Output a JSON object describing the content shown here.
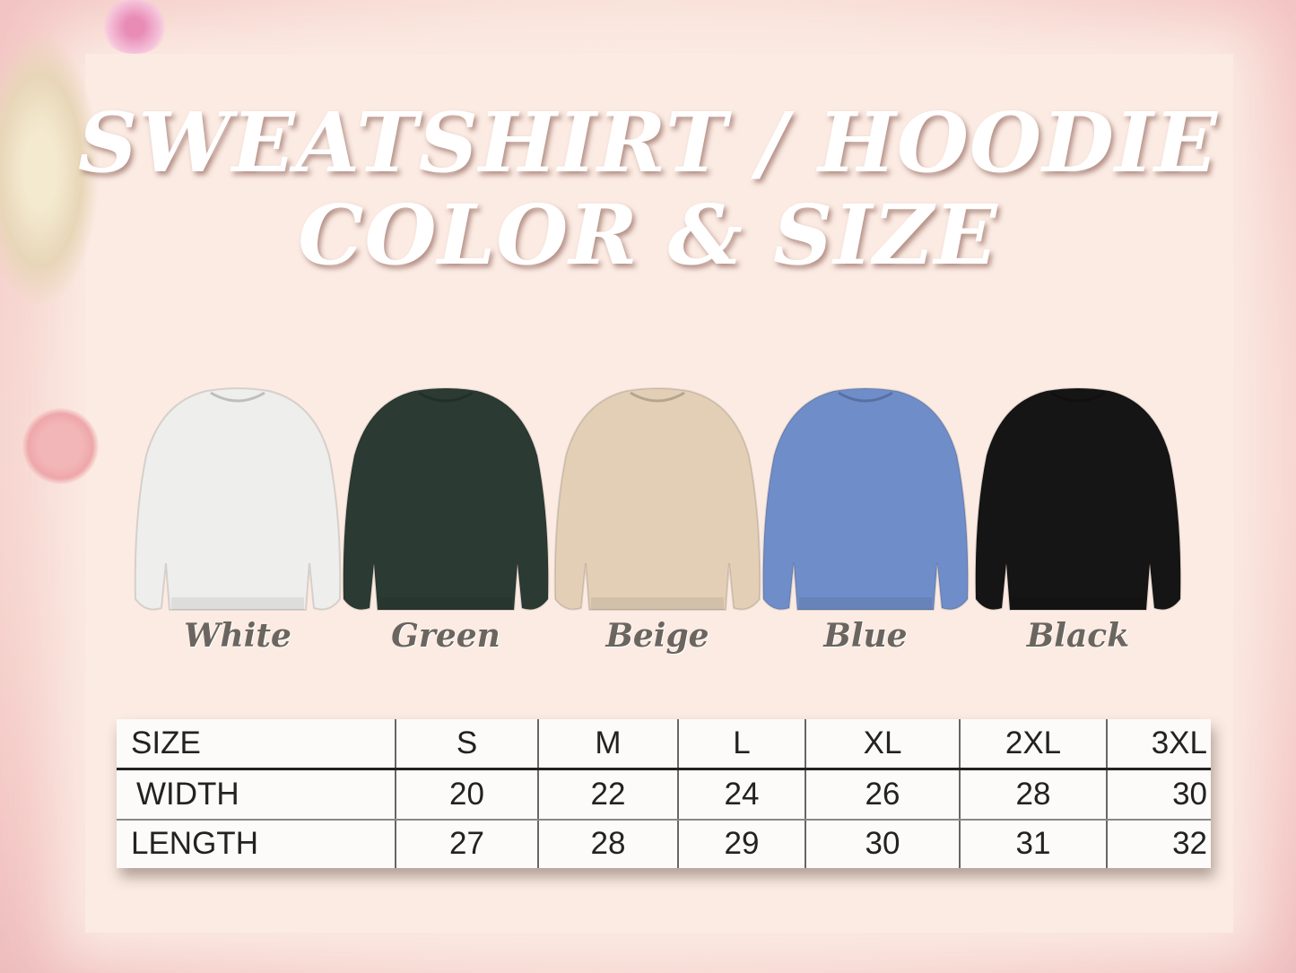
{
  "title": {
    "line1": "SWEATSHIRT / HOODIE",
    "line2": "COLOR & SIZE"
  },
  "colors": [
    {
      "label": "White",
      "hex": "#eeeeec"
    },
    {
      "label": "Green",
      "hex": "#2b3b33"
    },
    {
      "label": "Beige",
      "hex": "#e3cfb5"
    },
    {
      "label": "Blue",
      "hex": "#6f8dc9"
    },
    {
      "label": "Black",
      "hex": "#151515"
    }
  ],
  "size_table": {
    "header": [
      "SIZE",
      "S",
      "M",
      "L",
      "XL",
      "2XL",
      "3XL"
    ],
    "rows": [
      [
        "WIDTH",
        "20",
        "22",
        "24",
        "26",
        "28",
        "30"
      ],
      [
        "LENGTH",
        "27",
        "28",
        "29",
        "30",
        "31",
        "32"
      ]
    ]
  }
}
